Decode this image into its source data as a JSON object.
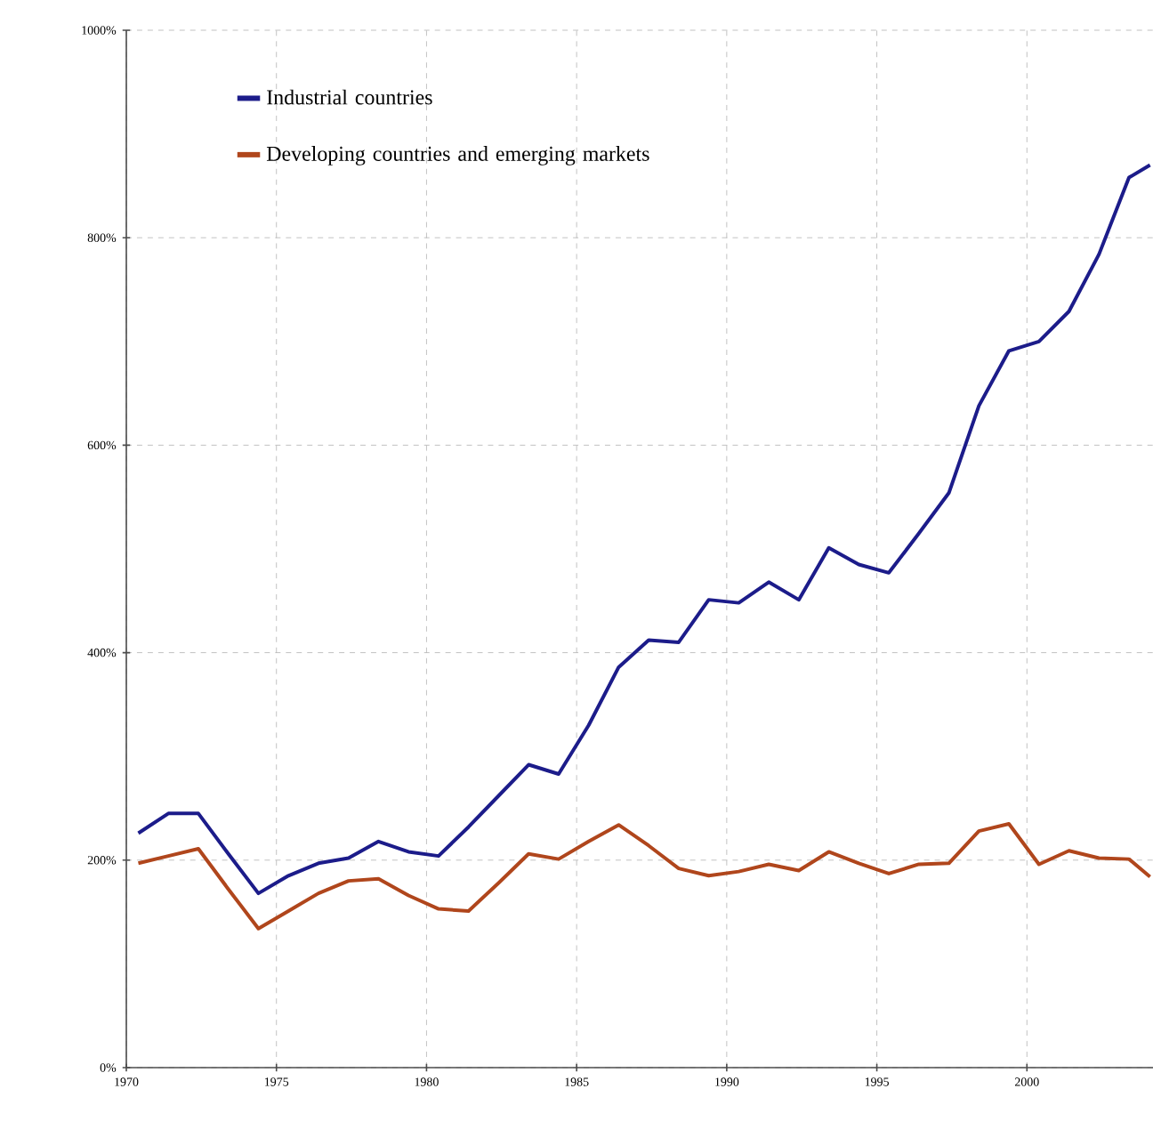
{
  "chart_data": {
    "type": "line",
    "series": [
      {
        "name": "Industrial countries",
        "color": "#1c1c8a",
        "x": [
          1970.4,
          1971.4,
          1972.4,
          1973.4,
          1974.4,
          1975.4,
          1976.4,
          1977.4,
          1978.4,
          1979.4,
          1980.4,
          1981.4,
          1982.4,
          1983.4,
          1984.4,
          1985.4,
          1986.4,
          1987.4,
          1988.4,
          1989.4,
          1990.4,
          1991.4,
          1992.4,
          1993.4,
          1994.4,
          1995.4,
          1996.4,
          1997.4,
          1998.4,
          1999.4,
          2000.4,
          2001.4,
          2002.4,
          2003.4,
          2004.1
        ],
        "values": [
          226,
          245,
          245,
          206,
          168,
          185,
          197,
          202,
          218,
          208,
          204,
          232,
          262,
          292,
          283,
          330,
          386,
          412,
          410,
          451,
          448,
          468,
          451,
          501,
          485,
          477,
          515,
          554,
          638,
          691,
          700,
          729,
          784,
          858,
          870
        ]
      },
      {
        "name": "Developing countries and emerging markets",
        "color": "#b0461c",
        "x": [
          1970.4,
          1971.4,
          1972.4,
          1973.4,
          1974.4,
          1975.4,
          1976.4,
          1977.4,
          1978.4,
          1979.4,
          1980.4,
          1981.4,
          1982.4,
          1983.4,
          1984.4,
          1985.4,
          1986.4,
          1987.4,
          1988.4,
          1989.4,
          1990.4,
          1991.4,
          1992.4,
          1993.4,
          1994.4,
          1995.4,
          1996.4,
          1997.4,
          1998.4,
          1999.4,
          2000.4,
          2001.4,
          2002.4,
          2003.4,
          2004.1
        ],
        "values": [
          197,
          204,
          211,
          172,
          134,
          151,
          168,
          180,
          182,
          166,
          153,
          151,
          178,
          206,
          201,
          218,
          234,
          214,
          192,
          185,
          189,
          196,
          190,
          208,
          197,
          187,
          196,
          197,
          228,
          235,
          196,
          209,
          202,
          201,
          184
        ]
      }
    ],
    "xlim": [
      1970,
      2004.2
    ],
    "xticks": [
      1970,
      1975,
      1980,
      1985,
      1990,
      1995,
      2000
    ],
    "ylim": [
      0,
      1000
    ],
    "yticks": [
      {
        "value": 0,
        "label": "0%"
      },
      {
        "value": 200,
        "label": "200%"
      },
      {
        "value": 400,
        "label": "400%"
      },
      {
        "value": 600,
        "label": "600%"
      },
      {
        "value": 800,
        "label": "800%"
      },
      {
        "value": 1000,
        "label": "1000%"
      }
    ],
    "grid": true,
    "legend": "top left",
    "marker": "none",
    "line_style": "solid"
  }
}
